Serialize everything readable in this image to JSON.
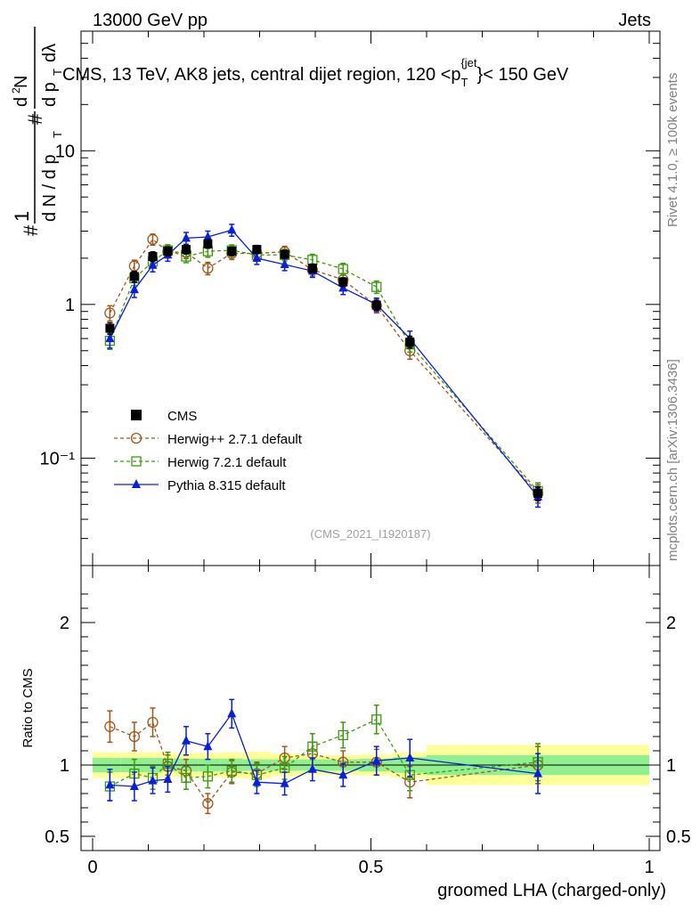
{
  "header": {
    "left": "13000 GeV pp",
    "right": "Jets"
  },
  "side": {
    "rivet": "Rivet 4.1.0, ≥ 100k events",
    "mcplots": "mcplots.cern.ch [arXiv:1306.3436]"
  },
  "ylabel_main": {
    "numerator": "1",
    "denominator": "dN / dp_T",
    "deriv": "d²N / dp_T dλ",
    "hash": "#"
  },
  "chart_data": {
    "type": "scatter",
    "title": "CMS, 13 TeV, AK8 jets, central dijet region, 120 <p_T^{jet}< 150 GeV",
    "title_parts": {
      "prefix": "CMS, 13 TeV, AK8 jets, central dijet region, 120 <p",
      "sub": "T",
      "sup": "{jet",
      "suffix": "}< 150 GeV"
    },
    "analysis_id": "(CMS_2021_I1920187)",
    "xlabel": "groomed LHA (charged-only)",
    "ylabel_ratio": "Ratio to CMS",
    "xlim": [
      0,
      1
    ],
    "ylim": [
      0.02,
      60
    ],
    "yscale": "log",
    "ratio_ylim": [
      0.4,
      2.4
    ],
    "x_ticks": [
      {
        "v": 0,
        "label": "0"
      },
      {
        "v": 0.5,
        "label": "0.5"
      },
      {
        "v": 1,
        "label": "1"
      }
    ],
    "y_ticks_main": [
      {
        "v": 0.1,
        "label": "10⁻¹"
      },
      {
        "v": 1,
        "label": "1"
      },
      {
        "v": 10,
        "label": "10"
      }
    ],
    "y_ticks_ratio": [
      {
        "v": 0.5,
        "label": "0.5"
      },
      {
        "v": 1,
        "label": "1"
      },
      {
        "v": 2,
        "label": "2"
      }
    ],
    "bins": [
      0,
      0.05,
      0.1,
      0.125,
      0.15,
      0.19,
      0.23,
      0.27,
      0.32,
      0.37,
      0.42,
      0.48,
      0.54,
      0.6,
      1.0
    ],
    "x": [
      0.031,
      0.075,
      0.108,
      0.135,
      0.168,
      0.207,
      0.25,
      0.295,
      0.345,
      0.395,
      0.45,
      0.51,
      0.57,
      0.8
    ],
    "series": [
      {
        "name": "CMS",
        "color": "#000000",
        "marker": "square-filled",
        "line": "none",
        "values": [
          0.7,
          1.52,
          2.05,
          2.22,
          2.28,
          2.48,
          2.22,
          2.28,
          2.12,
          1.72,
          1.4,
          0.99,
          0.57,
          0.059
        ],
        "errors": [
          0.06,
          0.12,
          0.15,
          0.15,
          0.15,
          0.16,
          0.14,
          0.14,
          0.13,
          0.11,
          0.09,
          0.07,
          0.05,
          0.006
        ]
      },
      {
        "name": "Herwig++ 2.7.1 default",
        "color": "#a0561a",
        "marker": "circle-open",
        "line": "dashed",
        "values": [
          0.88,
          1.78,
          2.65,
          2.2,
          2.18,
          1.72,
          2.15,
          2.15,
          2.2,
          1.68,
          1.45,
          0.98,
          0.5,
          0.059
        ],
        "errors": [
          0.1,
          0.16,
          0.22,
          0.19,
          0.19,
          0.16,
          0.19,
          0.19,
          0.19,
          0.15,
          0.13,
          0.1,
          0.06,
          0.008
        ]
      },
      {
        "name": "Herwig 7.2.1 default",
        "color": "#3c9a10",
        "marker": "square-open",
        "line": "dashed",
        "values": [
          0.58,
          1.48,
          1.9,
          2.25,
          2.05,
          2.22,
          2.25,
          2.1,
          2.1,
          1.95,
          1.7,
          1.3,
          0.55,
          0.061
        ],
        "errors": [
          0.07,
          0.15,
          0.17,
          0.2,
          0.18,
          0.19,
          0.19,
          0.18,
          0.18,
          0.17,
          0.15,
          0.12,
          0.06,
          0.008
        ]
      },
      {
        "name": "Pythia 8.315 default",
        "color": "#0a1fd8",
        "marker": "triangle-filled",
        "line": "solid",
        "values": [
          0.6,
          1.25,
          1.8,
          2.1,
          2.7,
          2.75,
          3.05,
          2.0,
          1.82,
          1.65,
          1.28,
          1.0,
          0.6,
          0.056
        ],
        "errors": [
          0.08,
          0.14,
          0.17,
          0.19,
          0.24,
          0.25,
          0.27,
          0.18,
          0.16,
          0.15,
          0.12,
          0.1,
          0.07,
          0.008
        ]
      }
    ],
    "ratio": {
      "reference_band": {
        "inner_color": "#90f090",
        "outer_color": "#ffff99",
        "inner": [
          0.05,
          0.05,
          0.05,
          0.045,
          0.045,
          0.045,
          0.045,
          0.04,
          0.04,
          0.04,
          0.04,
          0.045,
          0.055,
          0.07
        ],
        "outer": [
          0.09,
          0.09,
          0.09,
          0.085,
          0.085,
          0.085,
          0.09,
          0.095,
          0.08,
          0.07,
          0.07,
          0.075,
          0.09,
          0.14
        ]
      },
      "series": [
        {
          "name": "Herwig++ 2.7.1 default",
          "values": [
            1.27,
            1.2,
            1.3,
            0.99,
            0.96,
            0.73,
            0.95,
            0.94,
            1.05,
            1.08,
            1.02,
            1.02,
            0.88,
            1.0
          ],
          "errors": [
            0.11,
            0.1,
            0.1,
            0.08,
            0.08,
            0.07,
            0.08,
            0.08,
            0.08,
            0.08,
            0.08,
            0.09,
            0.11,
            0.13
          ]
        },
        {
          "name": "Herwig 7.2.1 default",
          "values": [
            0.85,
            0.94,
            0.91,
            1.01,
            0.91,
            0.92,
            0.96,
            0.93,
            0.98,
            1.13,
            1.21,
            1.32,
            0.93,
            1.02
          ],
          "errors": [
            0.1,
            0.1,
            0.08,
            0.08,
            0.08,
            0.08,
            0.08,
            0.08,
            0.08,
            0.09,
            0.09,
            0.1,
            0.11,
            0.13
          ]
        },
        {
          "name": "Pythia 8.315 default",
          "values": [
            0.86,
            0.85,
            0.89,
            0.9,
            1.17,
            1.13,
            1.36,
            0.88,
            0.87,
            0.97,
            0.93,
            1.03,
            1.05,
            0.94
          ],
          "errors": [
            0.11,
            0.1,
            0.09,
            0.09,
            0.1,
            0.09,
            0.1,
            0.08,
            0.08,
            0.08,
            0.08,
            0.1,
            0.13,
            0.14
          ]
        }
      ]
    },
    "legend_position": "center-left"
  }
}
